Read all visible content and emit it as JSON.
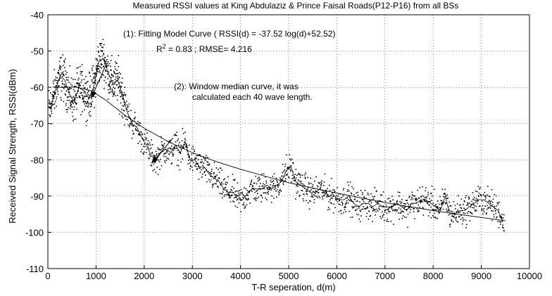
{
  "chart_data": {
    "type": "scatter",
    "title": "Measured RSSI values at King Abdulaziz & Prince Faisal Roads(P12-P16) from all BSs",
    "xlabel": "T-R seperation, d(m)",
    "ylabel": "Received Signal Strength, RSSI(dBm)",
    "xlim": [
      0,
      10000
    ],
    "ylim": [
      -110,
      -40
    ],
    "xticks": [
      0,
      1000,
      2000,
      3000,
      4000,
      5000,
      6000,
      7000,
      8000,
      9000,
      10000
    ],
    "yticks": [
      -110,
      -100,
      -90,
      -80,
      -70,
      -60,
      -50,
      -40
    ],
    "grid": true,
    "colors": {
      "points": "#000000",
      "lines": "#000000",
      "grid": "#000000"
    },
    "annotations": [
      {
        "label": "fit",
        "line1": "(1): Fitting Model Curve ( RSSI(d) = -37.52 log(d)+52.52)",
        "r2_prefix": "R",
        "r2_sup": "2",
        "r2_rest": " = 0.83 ; RMSE= 4.216",
        "arrow_from": [
          1200,
          -54
        ],
        "arrow_to": [
          900,
          -63
        ]
      },
      {
        "label": "median",
        "line1": "(2): Window median curve, it was",
        "line2": "calculated each 40 wave length.",
        "arrow_from": [
          2600,
          -74
        ],
        "arrow_to": [
          2150,
          -81
        ]
      }
    ],
    "series": [
      {
        "type": "line",
        "role": "fitting-model",
        "x": [
          100,
          300,
          600,
          900,
          1200,
          1600,
          2000,
          2500,
          3000,
          3500,
          4000,
          4500,
          5000,
          5500,
          6000,
          6500,
          7000,
          7500,
          8000,
          8500,
          9000,
          9500
        ],
        "y": [
          -60,
          -60,
          -60,
          -61,
          -63.5,
          -67.7,
          -71.3,
          -75.0,
          -78.0,
          -80.5,
          -82.6,
          -84.5,
          -86.3,
          -87.8,
          -89.2,
          -90.5,
          -91.8,
          -92.9,
          -94.0,
          -95.0,
          -95.9,
          -96.8
        ]
      },
      {
        "type": "line",
        "role": "window-median",
        "x": [
          50,
          150,
          250,
          350,
          450,
          550,
          650,
          750,
          850,
          950,
          1050,
          1150,
          1250,
          1350,
          1450,
          1550,
          1650,
          1750,
          1850,
          1950,
          2050,
          2150,
          2250,
          2350,
          2450,
          2550,
          2650,
          2750,
          2850,
          2950,
          3050,
          3150,
          3250,
          3350,
          3450,
          3550,
          3650,
          3750,
          3850,
          3950,
          4050,
          4150,
          4250,
          4350,
          4450,
          4550,
          4650,
          4750,
          4850,
          4950,
          5050,
          5150,
          5250,
          5350,
          5450,
          5550,
          5650,
          5750,
          5850,
          5950,
          6050,
          6150,
          6250,
          6350,
          6450,
          6550,
          6650,
          6750,
          6850,
          6950,
          7050,
          7150,
          7250,
          7350,
          7450,
          7550,
          7650,
          7750,
          7850,
          7950,
          8050,
          8150,
          8250,
          8350,
          8450,
          8550,
          8650,
          8750,
          8850,
          8950,
          9050,
          9150,
          9250,
          9350,
          9450
        ],
        "y": [
          -66,
          -61,
          -57,
          -58,
          -62,
          -64,
          -60,
          -61,
          -63,
          -60,
          -53,
          -52,
          -56,
          -59,
          -58,
          -62,
          -67,
          -70,
          -71,
          -74,
          -76,
          -79,
          -80,
          -78,
          -77,
          -78,
          -76,
          -78,
          -75,
          -80,
          -80,
          -82,
          -82,
          -84,
          -85,
          -86,
          -88,
          -89,
          -89,
          -91,
          -91,
          -89,
          -88,
          -88,
          -88,
          -87,
          -88,
          -87,
          -86,
          -83,
          -82,
          -86,
          -87,
          -88,
          -89,
          -89,
          -88,
          -89,
          -90,
          -90,
          -91,
          -91,
          -90,
          -92,
          -93,
          -92,
          -92,
          -93,
          -92,
          -93,
          -93,
          -93,
          -92,
          -93,
          -94,
          -92,
          -92,
          -91,
          -91,
          -92,
          -93,
          -94,
          -90,
          -95,
          -95,
          -94,
          -94,
          -93,
          -92,
          -91,
          -91,
          -92,
          -93,
          -94,
          -97
        ]
      }
    ]
  }
}
